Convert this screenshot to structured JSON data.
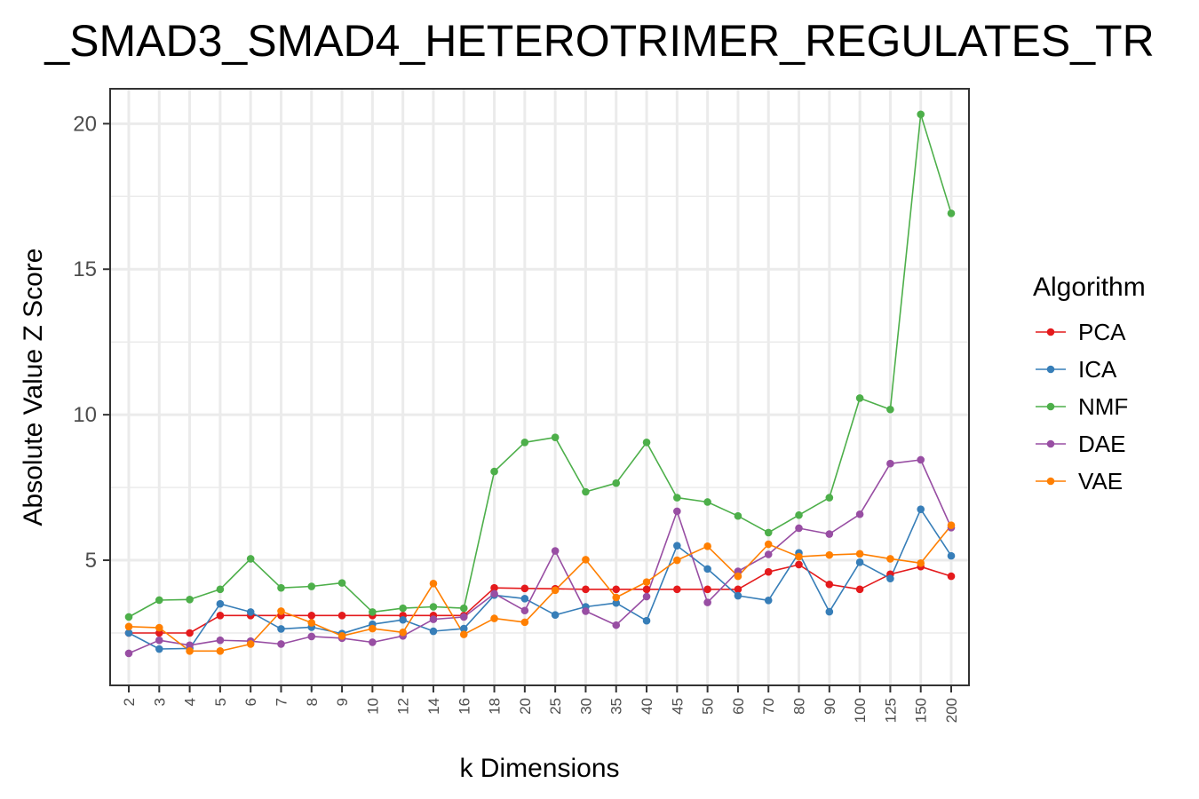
{
  "chart_data": {
    "type": "line",
    "title": "_SMAD3_SMAD4_HETEROTRIMER_REGULATES_TR",
    "xlabel": "k Dimensions",
    "ylabel": "Absolute Value Z Score",
    "categories": [
      "2",
      "3",
      "4",
      "5",
      "6",
      "7",
      "8",
      "9",
      "10",
      "12",
      "14",
      "16",
      "18",
      "20",
      "25",
      "30",
      "35",
      "40",
      "45",
      "50",
      "60",
      "70",
      "80",
      "90",
      "100",
      "125",
      "150",
      "200"
    ],
    "ylim": [
      0.7,
      21.2
    ],
    "yticks": [
      5,
      10,
      15,
      20
    ],
    "ytick_labels": [
      "5",
      "10",
      "15",
      "20"
    ],
    "grid": true,
    "legend": {
      "title": "Algorithm",
      "position": "right"
    },
    "series": [
      {
        "name": "PCA",
        "color": "#e41a1c",
        "values": [
          2.5,
          2.5,
          2.5,
          3.1,
          3.1,
          3.1,
          3.1,
          3.1,
          3.1,
          3.1,
          3.1,
          3.1,
          4.05,
          4.03,
          4.02,
          4.0,
          4.0,
          4.0,
          4.0,
          4.0,
          4.0,
          4.6,
          4.85,
          4.17,
          4.0,
          4.52,
          4.78,
          4.45
        ]
      },
      {
        "name": "ICA",
        "color": "#377eb8",
        "values": [
          2.5,
          1.95,
          1.97,
          3.5,
          3.22,
          2.64,
          2.7,
          2.48,
          2.8,
          2.95,
          2.56,
          2.65,
          3.8,
          3.68,
          3.12,
          3.4,
          3.53,
          2.92,
          5.5,
          4.7,
          3.78,
          3.62,
          5.25,
          3.23,
          4.93,
          4.37,
          6.75,
          5.15
        ]
      },
      {
        "name": "NMF",
        "color": "#4daf4a",
        "values": [
          3.05,
          3.63,
          3.65,
          4.0,
          5.05,
          4.05,
          4.1,
          4.22,
          3.22,
          3.35,
          3.4,
          3.35,
          8.05,
          9.05,
          9.22,
          7.35,
          7.65,
          9.05,
          7.15,
          7.0,
          6.52,
          5.95,
          6.55,
          7.15,
          10.57,
          10.18,
          20.32,
          16.92
        ]
      },
      {
        "name": "DAE",
        "color": "#984ea3",
        "values": [
          1.8,
          2.25,
          2.08,
          2.25,
          2.22,
          2.12,
          2.38,
          2.32,
          2.18,
          2.4,
          2.97,
          3.05,
          3.85,
          3.27,
          5.32,
          3.25,
          2.77,
          3.75,
          6.68,
          3.55,
          4.62,
          5.2,
          6.1,
          5.9,
          6.58,
          8.32,
          8.45,
          6.12
        ]
      },
      {
        "name": "VAE",
        "color": "#ff7f00",
        "values": [
          2.72,
          2.68,
          1.88,
          1.88,
          2.12,
          3.25,
          2.85,
          2.4,
          2.65,
          2.52,
          4.2,
          2.45,
          3.0,
          2.87,
          3.97,
          5.02,
          3.72,
          4.25,
          5.0,
          5.48,
          4.45,
          5.55,
          5.12,
          5.18,
          5.22,
          5.05,
          4.9,
          6.2
        ]
      }
    ]
  }
}
